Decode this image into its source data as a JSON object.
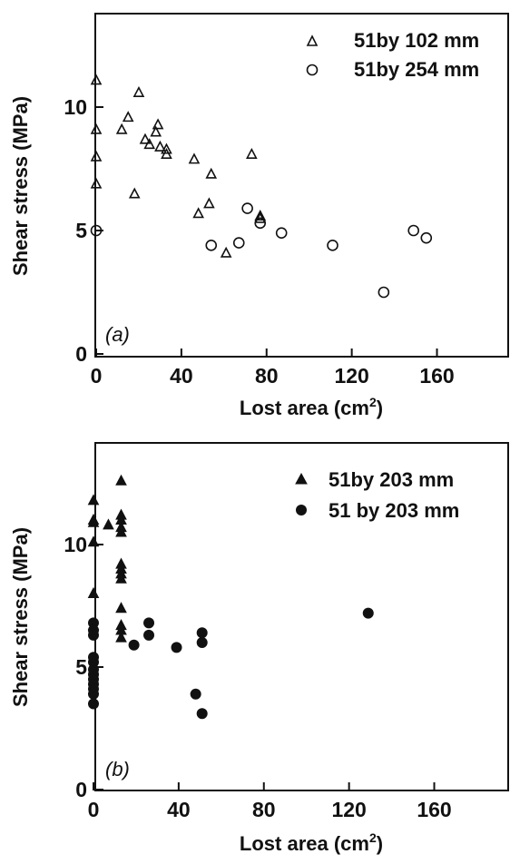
{
  "chart_data": [
    {
      "type": "scatter",
      "panel_label": "(a)",
      "xlabel": "Lost area (cm",
      "xlabel_sup": "2",
      "xlabel_end": ")",
      "ylabel": "Shear stress (MPa)",
      "xlim": [
        0,
        190
      ],
      "ylim": [
        0,
        14
      ],
      "xticks": [
        {
          "value": 0,
          "label": "0"
        },
        {
          "value": 40,
          "label": "40"
        },
        {
          "value": 80,
          "label": "80"
        },
        {
          "value": 120,
          "label": "120"
        },
        {
          "value": 160,
          "label": "160"
        }
      ],
      "yticks": [
        {
          "value": 0,
          "label": "0"
        },
        {
          "value": 5,
          "label": "5"
        },
        {
          "value": 10,
          "label": "10"
        }
      ],
      "legend_position": "top-right",
      "series": [
        {
          "name": "51by 102 mm",
          "marker": "triangle-open",
          "points": [
            [
              0,
              11.1
            ],
            [
              0,
              9.1
            ],
            [
              0,
              8.0
            ],
            [
              0,
              6.9
            ],
            [
              12,
              9.1
            ],
            [
              15,
              9.6
            ],
            [
              18,
              6.5
            ],
            [
              20,
              10.6
            ],
            [
              23,
              8.7
            ],
            [
              25,
              8.5
            ],
            [
              28,
              9.0
            ],
            [
              29,
              9.3
            ],
            [
              30,
              8.4
            ],
            [
              33,
              8.3
            ],
            [
              33,
              8.1
            ],
            [
              46,
              7.9
            ],
            [
              48,
              5.7
            ],
            [
              53,
              6.1
            ],
            [
              54,
              7.3
            ],
            [
              61,
              4.1
            ],
            [
              73,
              8.1
            ],
            [
              77,
              5.5
            ],
            [
              77,
              5.6
            ]
          ]
        },
        {
          "name": "51by 254 mm",
          "marker": "circle-open",
          "points": [
            [
              0,
              5.0
            ],
            [
              54,
              4.4
            ],
            [
              67,
              4.5
            ],
            [
              71,
              5.9
            ],
            [
              77,
              5.3
            ],
            [
              87,
              4.9
            ],
            [
              111,
              4.4
            ],
            [
              135,
              2.5
            ],
            [
              149,
              5.0
            ],
            [
              155,
              4.7
            ]
          ]
        }
      ]
    },
    {
      "type": "scatter",
      "panel_label": "(b)",
      "xlabel": "Lost area (cm",
      "xlabel_sup": "2",
      "xlabel_end": ")",
      "ylabel": "Shear stress (MPa)",
      "xlim": [
        0,
        190
      ],
      "ylim": [
        0,
        14
      ],
      "xticks": [
        {
          "value": 0,
          "label": "0"
        },
        {
          "value": 40,
          "label": "40"
        },
        {
          "value": 80,
          "label": "80"
        },
        {
          "value": 120,
          "label": "120"
        },
        {
          "value": 160,
          "label": "160"
        }
      ],
      "yticks": [
        {
          "value": 0,
          "label": "0"
        },
        {
          "value": 5,
          "label": "5"
        },
        {
          "value": 10,
          "label": "10"
        }
      ],
      "legend_position": "top-right",
      "series": [
        {
          "name": "51by 203 mm",
          "marker": "triangle-filled",
          "points": [
            [
              0,
              11.8
            ],
            [
              0,
              11.0
            ],
            [
              0,
              10.9
            ],
            [
              0,
              10.1
            ],
            [
              0,
              8.0
            ],
            [
              0,
              6.7
            ],
            [
              7,
              10.8
            ],
            [
              13,
              12.6
            ],
            [
              13,
              11.2
            ],
            [
              13,
              11.0
            ],
            [
              13,
              10.7
            ],
            [
              13,
              10.5
            ],
            [
              13,
              9.2
            ],
            [
              13,
              9.0
            ],
            [
              13,
              8.8
            ],
            [
              13,
              8.6
            ],
            [
              13,
              7.4
            ],
            [
              13,
              6.7
            ],
            [
              13,
              6.5
            ],
            [
              13,
              6.2
            ]
          ]
        },
        {
          "name": "51 by 203 mm",
          "marker": "circle-filled",
          "points": [
            [
              0,
              6.8
            ],
            [
              0,
              6.5
            ],
            [
              0,
              6.3
            ],
            [
              0,
              5.4
            ],
            [
              0,
              5.2
            ],
            [
              0,
              4.9
            ],
            [
              0,
              4.7
            ],
            [
              0,
              4.5
            ],
            [
              0,
              4.3
            ],
            [
              0,
              4.1
            ],
            [
              0,
              3.9
            ],
            [
              0,
              3.5
            ],
            [
              19,
              5.9
            ],
            [
              26,
              6.8
            ],
            [
              26,
              6.3
            ],
            [
              39,
              5.8
            ],
            [
              48,
              3.9
            ],
            [
              51,
              6.4
            ],
            [
              51,
              6.0
            ],
            [
              51,
              3.1
            ],
            [
              129,
              7.2
            ]
          ]
        }
      ]
    }
  ]
}
